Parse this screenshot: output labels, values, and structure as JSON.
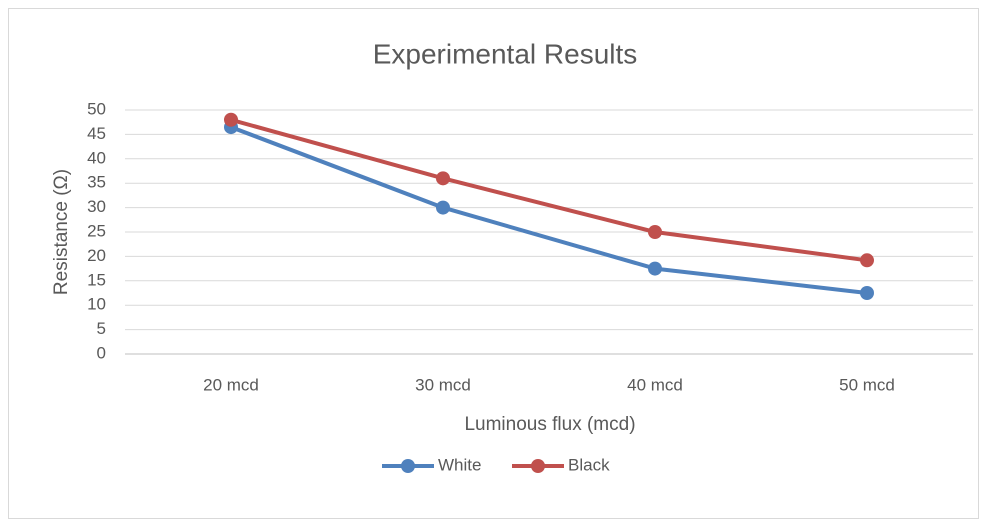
{
  "chart_data": {
    "type": "line",
    "title": "Experimental Results",
    "x_label": "Luminous flux (mcd)",
    "y_label": "Resistance (Ω)",
    "categories": [
      "20 mcd",
      "30 mcd",
      "40 mcd",
      "50 mcd"
    ],
    "series": [
      {
        "name": "White",
        "color": "#4f81bd",
        "values": [
          46.5,
          30,
          17.5,
          12.5
        ]
      },
      {
        "name": "Black",
        "color": "#c0504d",
        "values": [
          48,
          36,
          25,
          19.2
        ]
      }
    ],
    "ylim": [
      0,
      50
    ],
    "yticks": [
      0,
      5,
      10,
      15,
      20,
      25,
      30,
      35,
      40,
      45,
      50
    ],
    "grid": true,
    "legend": "bottom"
  }
}
